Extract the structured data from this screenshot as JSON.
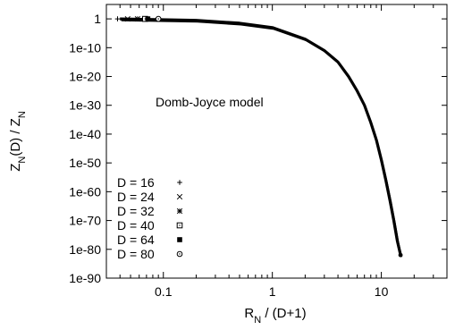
{
  "chart_data": {
    "type": "scatter",
    "title": "",
    "annotation": "Domb-Joyce model",
    "xlabel": {
      "main": "R",
      "sub": "N",
      "rest": " / (D+1)"
    },
    "ylabel": {
      "part1": "Z",
      "sub1": "N",
      "part2": "(D)  / Z",
      "sub2": "N"
    },
    "x_scale": "log",
    "y_scale": "log",
    "xlim": [
      0.03,
      40
    ],
    "ylim": [
      1e-90,
      100000.0
    ],
    "x_ticks": [
      {
        "value": 0.1,
        "label": "0.1"
      },
      {
        "value": 1,
        "label": "1"
      },
      {
        "value": 10,
        "label": "10"
      }
    ],
    "y_ticks": [
      {
        "exp": 0,
        "label": "1"
      },
      {
        "exp": -10,
        "label": "1e-10"
      },
      {
        "exp": -20,
        "label": "1e-20"
      },
      {
        "exp": -30,
        "label": "1e-30"
      },
      {
        "exp": -40,
        "label": "1e-40"
      },
      {
        "exp": -50,
        "label": "1e-50"
      },
      {
        "exp": -60,
        "label": "1e-60"
      },
      {
        "exp": -70,
        "label": "1e-70"
      },
      {
        "exp": -80,
        "label": "1e-80"
      },
      {
        "exp": -90,
        "label": "1e-90"
      }
    ],
    "legend_position": "bottom-left",
    "series": [
      {
        "name": "D = 16",
        "marker": "plus"
      },
      {
        "name": "D = 24",
        "marker": "cross"
      },
      {
        "name": "D = 32",
        "marker": "asterisk"
      },
      {
        "name": "D = 40",
        "marker": "open-square"
      },
      {
        "name": "D = 64",
        "marker": "filled-square"
      },
      {
        "name": "D = 80",
        "marker": "open-circle"
      }
    ],
    "curve": {
      "note": "all series collapse onto one curve",
      "points": [
        {
          "x": 0.04,
          "log10_y": 0.0
        },
        {
          "x": 0.2,
          "log10_y": -0.5
        },
        {
          "x": 0.5,
          "log10_y": -1.5
        },
        {
          "x": 1.0,
          "log10_y": -3.0
        },
        {
          "x": 2.0,
          "log10_y": -7.0
        },
        {
          "x": 3.0,
          "log10_y": -11.0
        },
        {
          "x": 4.0,
          "log10_y": -15.0
        },
        {
          "x": 5.0,
          "log10_y": -20.0
        },
        {
          "x": 6.0,
          "log10_y": -25.0
        },
        {
          "x": 7.0,
          "log10_y": -30.0
        },
        {
          "x": 8.0,
          "log10_y": -36.0
        },
        {
          "x": 9.0,
          "log10_y": -42.0
        },
        {
          "x": 10.0,
          "log10_y": -49.0
        },
        {
          "x": 11.0,
          "log10_y": -56.0
        },
        {
          "x": 12.0,
          "log10_y": -63.0
        },
        {
          "x": 13.0,
          "log10_y": -70.0
        },
        {
          "x": 14.0,
          "log10_y": -77.0
        },
        {
          "x": 15.0,
          "log10_y": -82.0
        }
      ]
    },
    "data_start_x": [
      0.038,
      0.047,
      0.058,
      0.068,
      0.072,
      0.09
    ]
  }
}
